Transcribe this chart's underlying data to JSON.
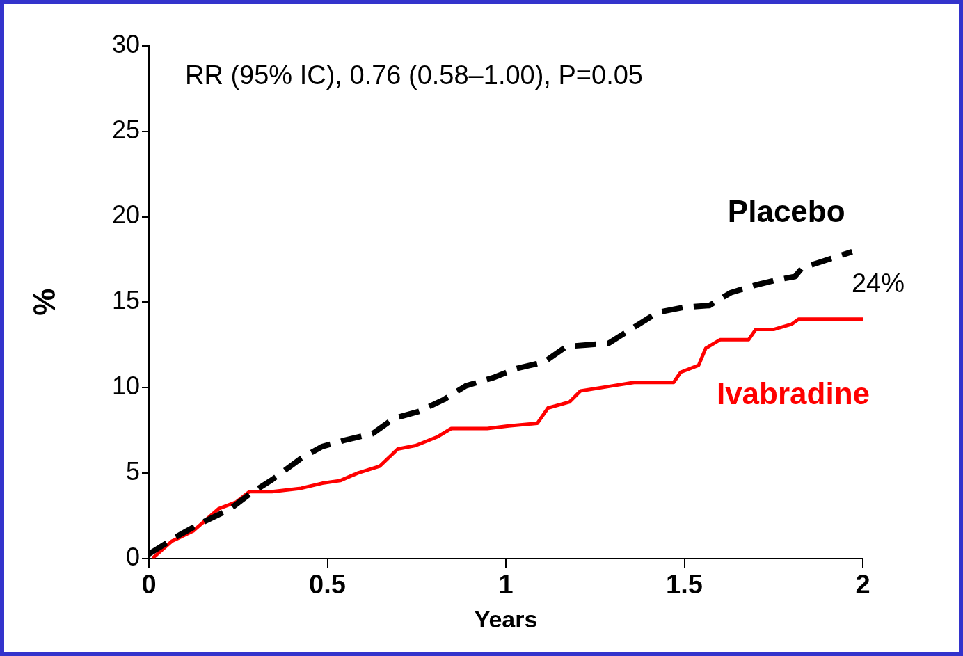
{
  "chart_data": {
    "type": "line",
    "xlabel": "Years",
    "ylabel": "%",
    "xlim": [
      0,
      2
    ],
    "xticks": [
      0,
      0.5,
      1,
      1.5,
      2
    ],
    "ylim": [
      0,
      30
    ],
    "yticks": [
      0,
      5,
      10,
      15,
      20,
      25,
      30
    ],
    "grid": false,
    "legend": false,
    "marker": "none",
    "series": [
      {
        "name": "Placebo",
        "color": "#000000",
        "line_style": "dashed",
        "x": [
          0,
          0.084,
          0.145,
          0.225,
          0.285,
          0.345,
          0.426,
          0.486,
          0.546,
          0.627,
          0.687,
          0.757,
          0.827,
          0.888,
          0.968,
          1.028,
          1.108,
          1.169,
          1.229,
          1.289,
          1.349,
          1.426,
          1.5,
          1.57,
          1.63,
          1.7,
          1.76,
          1.81,
          1.83,
          1.97
        ],
        "values": [
          0.25,
          1.35,
          2.05,
          2.85,
          3.8,
          4.6,
          5.85,
          6.55,
          6.9,
          7.3,
          8.2,
          8.6,
          9.3,
          10.1,
          10.6,
          11.1,
          11.5,
          12.4,
          12.5,
          12.6,
          13.4,
          14.4,
          14.7,
          14.8,
          15.55,
          16,
          16.3,
          16.5,
          17,
          17.95
        ]
      },
      {
        "name": "Ivabradine",
        "color": "#ff0000",
        "line_style": "solid",
        "x": [
          0.01,
          0.064,
          0.124,
          0.195,
          0.245,
          0.281,
          0.345,
          0.426,
          0.486,
          0.536,
          0.586,
          0.647,
          0.697,
          0.747,
          0.807,
          0.847,
          0.948,
          1.008,
          1.088,
          1.118,
          1.178,
          1.209,
          1.299,
          1.359,
          1.47,
          1.49,
          1.54,
          1.56,
          1.6,
          1.68,
          1.7,
          1.75,
          1.8,
          1.82,
          2
        ],
        "values": [
          0,
          1,
          1.6,
          2.9,
          3.3,
          3.9,
          3.9,
          4.1,
          4.4,
          4.55,
          5,
          5.4,
          6.4,
          6.6,
          7.1,
          7.6,
          7.6,
          7.75,
          7.9,
          8.8,
          9.15,
          9.8,
          10.1,
          10.3,
          10.3,
          10.9,
          11.3,
          12.3,
          12.8,
          12.8,
          13.4,
          13.4,
          13.7,
          14,
          14
        ]
      }
    ],
    "annotations": [
      "RR (95% IC), 0.76 (0.58–1.00), P=0.05",
      "24%"
    ]
  }
}
